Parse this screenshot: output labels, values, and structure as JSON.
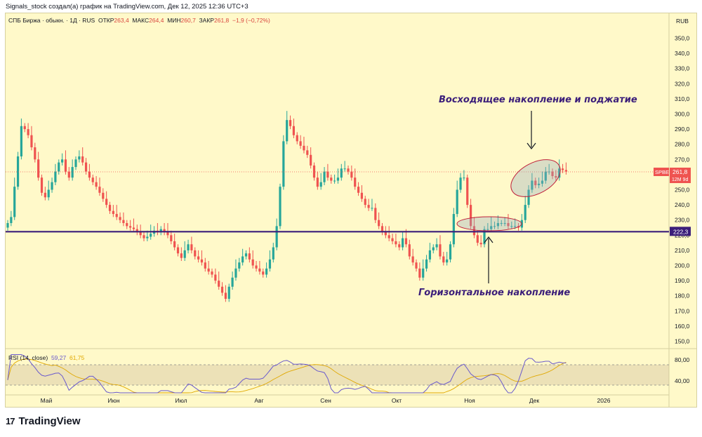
{
  "credit": "Signals_stock создал(а) график на TradingView.com, Дек 12, 2025 12:36 UTC+3",
  "legend": {
    "symbol": "СПБ Биржа · обыкн. · 1Д · RUS",
    "open_label": "ОТКР",
    "open": "263,4",
    "high_label": "МАКС",
    "high": "264,4",
    "low_label": "МИН",
    "low": "260,7",
    "close_label": "ЗАКР",
    "close": "261,8",
    "change": "−1,9 (−0,72%)"
  },
  "currency": "RUB",
  "price_tag": {
    "ticker": "SPBE",
    "price": "261,8",
    "countdown": "12M 9d"
  },
  "level_tag": "222,3",
  "annotations": {
    "top": "Восходящее накопление и поджатие",
    "bottom": "Горизонтальное накопление"
  },
  "rsi": {
    "label": "RSI (14, close)",
    "value": "59,27",
    "ma": "61,75",
    "upper": "80,00",
    "lower": "40,00"
  },
  "logo": {
    "text": "TradingView",
    "mark": "17"
  },
  "colors": {
    "up": "#26a69a",
    "down": "#ef5350",
    "level": "#3b1e7a",
    "bg": "#fff9c9"
  },
  "chart_data": {
    "type": "candlestick",
    "title": "СПБ Биржа · обыкн. · 1Д · RUS",
    "ylabel": "RUB",
    "ylim": [
      140,
      360
    ],
    "y_ticks": [
      "150,0",
      "160,0",
      "170,0",
      "180,0",
      "190,0",
      "200,0",
      "210,0",
      "220,0",
      "230,0",
      "240,0",
      "250,0",
      "260,0",
      "270,0",
      "280,0",
      "290,0",
      "300,0",
      "310,0",
      "320,0",
      "330,0",
      "340,0",
      "350,0"
    ],
    "x_ticks": [
      "Май",
      "Июн",
      "Июл",
      "Авг",
      "Сен",
      "Окт",
      "Ноя",
      "Дек",
      "2026"
    ],
    "horizontal_level": 222.3,
    "last_price": 261.8,
    "approx_close_path": [
      228,
      232,
      252,
      272,
      292,
      290,
      286,
      278,
      270,
      258,
      248,
      245,
      250,
      255,
      262,
      268,
      270,
      262,
      258,
      265,
      270,
      272,
      268,
      262,
      258,
      255,
      252,
      248,
      244,
      240,
      236,
      234,
      232,
      230,
      228,
      226,
      225,
      224,
      222,
      220,
      218,
      219,
      221,
      223,
      222,
      224,
      222,
      220,
      216,
      212,
      208,
      205,
      210,
      214,
      210,
      206,
      204,
      202,
      198,
      196,
      194,
      190,
      186,
      182,
      178,
      186,
      192,
      198,
      202,
      206,
      208,
      204,
      200,
      198,
      196,
      194,
      198,
      204,
      212,
      226,
      252,
      282,
      296,
      292,
      286,
      282,
      279,
      276,
      273,
      266,
      258,
      252,
      255,
      262,
      258,
      256,
      256,
      258,
      264,
      264,
      262,
      258,
      252,
      248,
      244,
      240,
      238,
      238,
      230,
      226,
      222,
      220,
      218,
      216,
      214,
      212,
      218,
      214,
      206,
      202,
      198,
      192,
      198,
      204,
      210,
      212,
      214,
      206,
      202,
      204,
      214,
      234,
      250,
      258,
      258,
      240,
      226,
      220,
      215,
      214,
      224,
      224,
      226,
      226,
      228,
      228,
      228,
      226,
      226,
      226,
      225,
      230,
      240,
      250,
      256,
      253,
      254,
      256,
      262,
      262,
      259,
      258,
      264,
      263,
      262
    ],
    "rsi_series": [
      {
        "name": "RSI (14, close)",
        "last": 59.27
      },
      {
        "name": "RSI MA",
        "last": 61.75
      }
    ],
    "rsi_bands": [
      40,
      80
    ]
  }
}
